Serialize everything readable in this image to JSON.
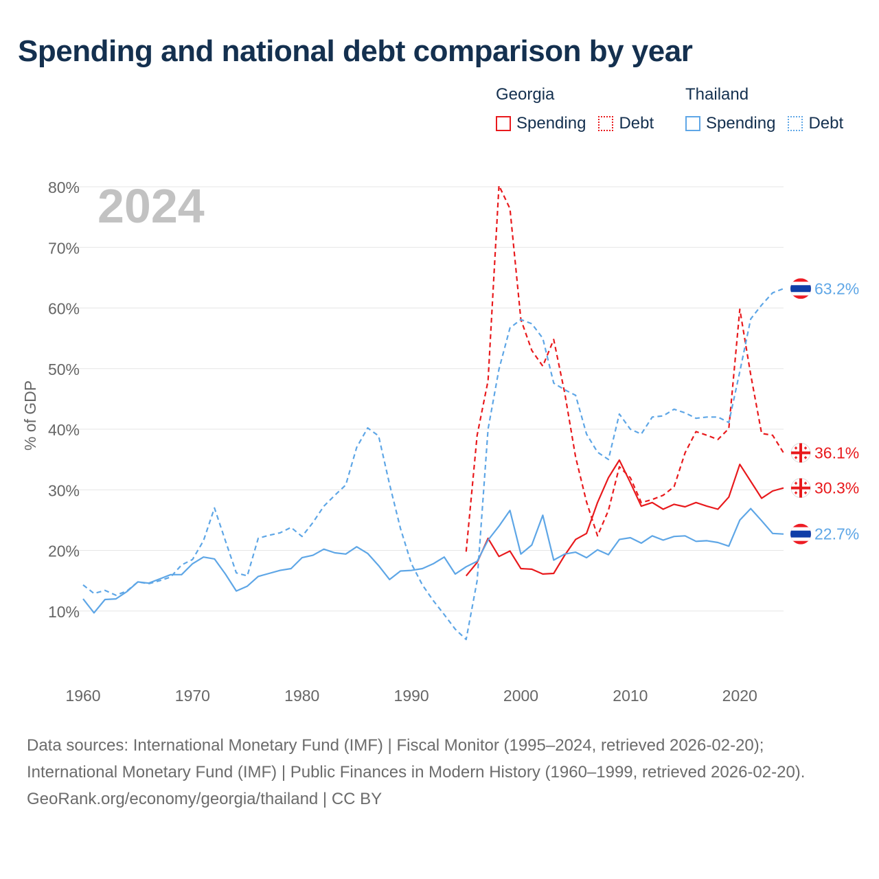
{
  "page": {
    "title": "Spending and national debt comparison by year",
    "sources": "Data sources: International Monetary Fund (IMF) | Fiscal Monitor (1995–2024, retrieved 2026-02-20); International Monetary Fund (IMF) | Public Finances in Modern History (1960–1999, retrieved 2026-02-20).",
    "credit": "GeoRank.org/economy/georgia/thailand | CC BY"
  },
  "legend": {
    "georgia": {
      "title": "Georgia",
      "spending": "Spending",
      "debt": "Debt"
    },
    "thailand": {
      "title": "Thailand",
      "spending": "Spending",
      "debt": "Debt"
    }
  },
  "colors": {
    "georgia": "#e8191c",
    "thailand": "#5ea6e6",
    "title": "#14304f"
  },
  "chart_data": {
    "type": "line",
    "title": "Spending and national debt comparison by year",
    "year_label": "2024",
    "ylabel": "% of GDP",
    "xlim": [
      1960,
      2024
    ],
    "ylim": [
      0,
      80
    ],
    "x_ticks": [
      1960,
      1970,
      1980,
      1990,
      2000,
      2010,
      2020
    ],
    "y_ticks": [
      10,
      20,
      30,
      40,
      50,
      60,
      70,
      80
    ],
    "y_tick_labels": [
      "10%",
      "20%",
      "30%",
      "40%",
      "50%",
      "60%",
      "70%",
      "80%"
    ],
    "series": [
      {
        "name": "Georgia Spending",
        "country": "Georgia",
        "style": "solid",
        "color": "#e8191c",
        "end_label": "30.3%",
        "x": [
          1995,
          1996,
          1997,
          1998,
          1999,
          2000,
          2001,
          2002,
          2003,
          2004,
          2005,
          2006,
          2007,
          2008,
          2009,
          2010,
          2011,
          2012,
          2013,
          2014,
          2015,
          2016,
          2017,
          2018,
          2019,
          2020,
          2021,
          2022,
          2023,
          2024
        ],
        "y": [
          15.8,
          18.0,
          22.0,
          19.0,
          19.9,
          17.0,
          16.9,
          16.1,
          16.2,
          19.2,
          21.8,
          22.8,
          27.9,
          32.0,
          34.9,
          31.2,
          27.3,
          27.9,
          26.8,
          27.6,
          27.2,
          27.9,
          27.3,
          26.8,
          28.8,
          34.2,
          31.4,
          28.6,
          29.8,
          30.3
        ]
      },
      {
        "name": "Georgia Debt",
        "country": "Georgia",
        "style": "dashed",
        "color": "#e8191c",
        "end_label": "36.1%",
        "x": [
          1995,
          1996,
          1997,
          1998,
          1999,
          2000,
          2001,
          2002,
          2003,
          2004,
          2005,
          2006,
          2007,
          2008,
          2009,
          2010,
          2011,
          2012,
          2013,
          2014,
          2015,
          2016,
          2017,
          2018,
          2019,
          2020,
          2021,
          2022,
          2023,
          2024
        ],
        "y": [
          19.8,
          39.0,
          48.0,
          80.2,
          76.4,
          58.1,
          53.0,
          50.4,
          54.8,
          46.0,
          35.4,
          28.0,
          22.4,
          26.6,
          33.8,
          32.0,
          27.9,
          28.4,
          29.1,
          30.5,
          36.1,
          39.6,
          39.0,
          38.3,
          40.1,
          59.8,
          49.0,
          39.3,
          39.0,
          36.1
        ]
      },
      {
        "name": "Thailand Spending",
        "country": "Thailand",
        "style": "solid",
        "color": "#5ea6e6",
        "end_label": "22.7%",
        "x": [
          1960,
          1961,
          1962,
          1963,
          1964,
          1965,
          1966,
          1967,
          1968,
          1969,
          1970,
          1971,
          1972,
          1973,
          1974,
          1975,
          1976,
          1977,
          1978,
          1979,
          1980,
          1981,
          1982,
          1983,
          1984,
          1985,
          1986,
          1987,
          1988,
          1989,
          1990,
          1991,
          1992,
          1993,
          1994,
          1995,
          1996,
          1997,
          1998,
          1999,
          2000,
          2001,
          2002,
          2003,
          2004,
          2005,
          2006,
          2007,
          2008,
          2009,
          2010,
          2011,
          2012,
          2013,
          2014,
          2015,
          2016,
          2017,
          2018,
          2019,
          2020,
          2021,
          2022,
          2023,
          2024
        ],
        "y": [
          12.0,
          9.7,
          11.9,
          12.0,
          13.2,
          14.8,
          14.6,
          15.3,
          16.0,
          16.0,
          17.8,
          18.9,
          18.6,
          16.1,
          13.3,
          14.1,
          15.7,
          16.2,
          16.7,
          17.0,
          18.8,
          19.2,
          20.2,
          19.6,
          19.4,
          20.6,
          19.5,
          17.5,
          15.2,
          16.6,
          16.7,
          17.0,
          17.8,
          18.9,
          16.1,
          17.3,
          18.2,
          21.7,
          24.0,
          26.6,
          19.4,
          20.9,
          25.8,
          18.4,
          19.4,
          19.7,
          18.8,
          20.1,
          19.3,
          21.8,
          22.1,
          21.2,
          22.4,
          21.7,
          22.3,
          22.4,
          21.5,
          21.6,
          21.3,
          20.7,
          25.0,
          26.9,
          24.9,
          22.8,
          22.7
        ]
      },
      {
        "name": "Thailand Debt",
        "country": "Thailand",
        "style": "dashed",
        "color": "#5ea6e6",
        "end_label": "63.2%",
        "x": [
          1960,
          1961,
          1962,
          1963,
          1964,
          1965,
          1966,
          1967,
          1968,
          1969,
          1970,
          1971,
          1972,
          1973,
          1974,
          1975,
          1976,
          1977,
          1978,
          1979,
          1980,
          1981,
          1982,
          1983,
          1984,
          1985,
          1986,
          1987,
          1988,
          1989,
          1990,
          1991,
          1992,
          1993,
          1994,
          1995,
          1996,
          1997,
          1998,
          1999,
          2000,
          2001,
          2002,
          2003,
          2004,
          2005,
          2006,
          2007,
          2008,
          2009,
          2010,
          2011,
          2012,
          2013,
          2014,
          2015,
          2016,
          2017,
          2018,
          2019,
          2020,
          2021,
          2022,
          2023,
          2024
        ],
        "y": [
          14.3,
          12.9,
          13.4,
          12.6,
          13.3,
          14.8,
          14.5,
          15.0,
          15.6,
          17.6,
          18.5,
          21.6,
          27.0,
          21.6,
          16.3,
          15.8,
          22.0,
          22.5,
          22.9,
          23.8,
          22.3,
          24.6,
          27.3,
          29.1,
          30.8,
          37.0,
          40.2,
          38.9,
          30.9,
          23.6,
          17.8,
          14.3,
          11.7,
          9.4,
          7.0,
          5.3,
          15.0,
          40.0,
          49.9,
          56.7,
          58.1,
          57.4,
          55.0,
          47.6,
          46.5,
          45.6,
          39.2,
          36.2,
          35.0,
          42.5,
          40.0,
          39.2,
          42.0,
          42.2,
          43.3,
          42.7,
          41.8,
          42.0,
          42.0,
          41.1,
          49.5,
          58.2,
          60.5,
          62.5,
          63.2
        ]
      }
    ]
  }
}
